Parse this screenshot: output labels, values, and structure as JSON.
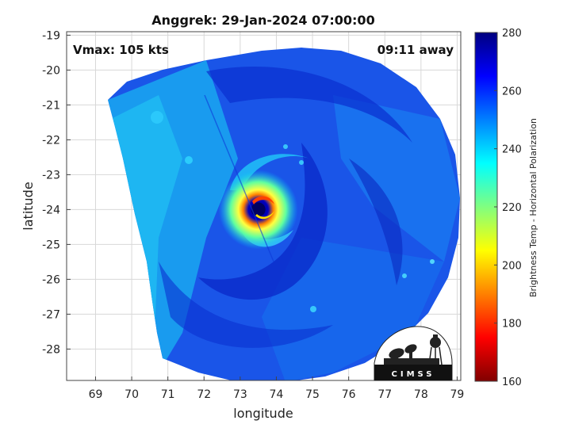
{
  "chart_data": {
    "type": "heatmap",
    "title": "Anggrek: 29-Jan-2024 07:00:00",
    "xlabel": "longitude",
    "ylabel": "latitude",
    "xlim": [
      68.2,
      79.1
    ],
    "ylim": [
      -28.9,
      -18.9
    ],
    "x_ticks": [
      "69",
      "70",
      "71",
      "72",
      "73",
      "74",
      "75",
      "76",
      "77",
      "78",
      "79"
    ],
    "y_ticks": [
      "-19",
      "-20",
      "-21",
      "-22",
      "-23",
      "-24",
      "-25",
      "-26",
      "-27",
      "-28"
    ],
    "grid": true,
    "annotations": {
      "vmax": "Vmax: 105 kts",
      "away": "09:11 away"
    },
    "storm_center": {
      "lon": 73.5,
      "lat": -24.0
    },
    "colorbar": {
      "label": "Brightness Temp - Horizontal Polarization",
      "range": [
        160,
        280
      ],
      "ticks": [
        "160",
        "180",
        "200",
        "220",
        "240",
        "260",
        "280"
      ],
      "colormap": "jet",
      "stops": [
        "#800000",
        "#ff0000",
        "#ff8000",
        "#ffff00",
        "#80ff80",
        "#00ffff",
        "#0080ff",
        "#0000ff",
        "#000080"
      ]
    },
    "logo_text": "CIMSS"
  }
}
